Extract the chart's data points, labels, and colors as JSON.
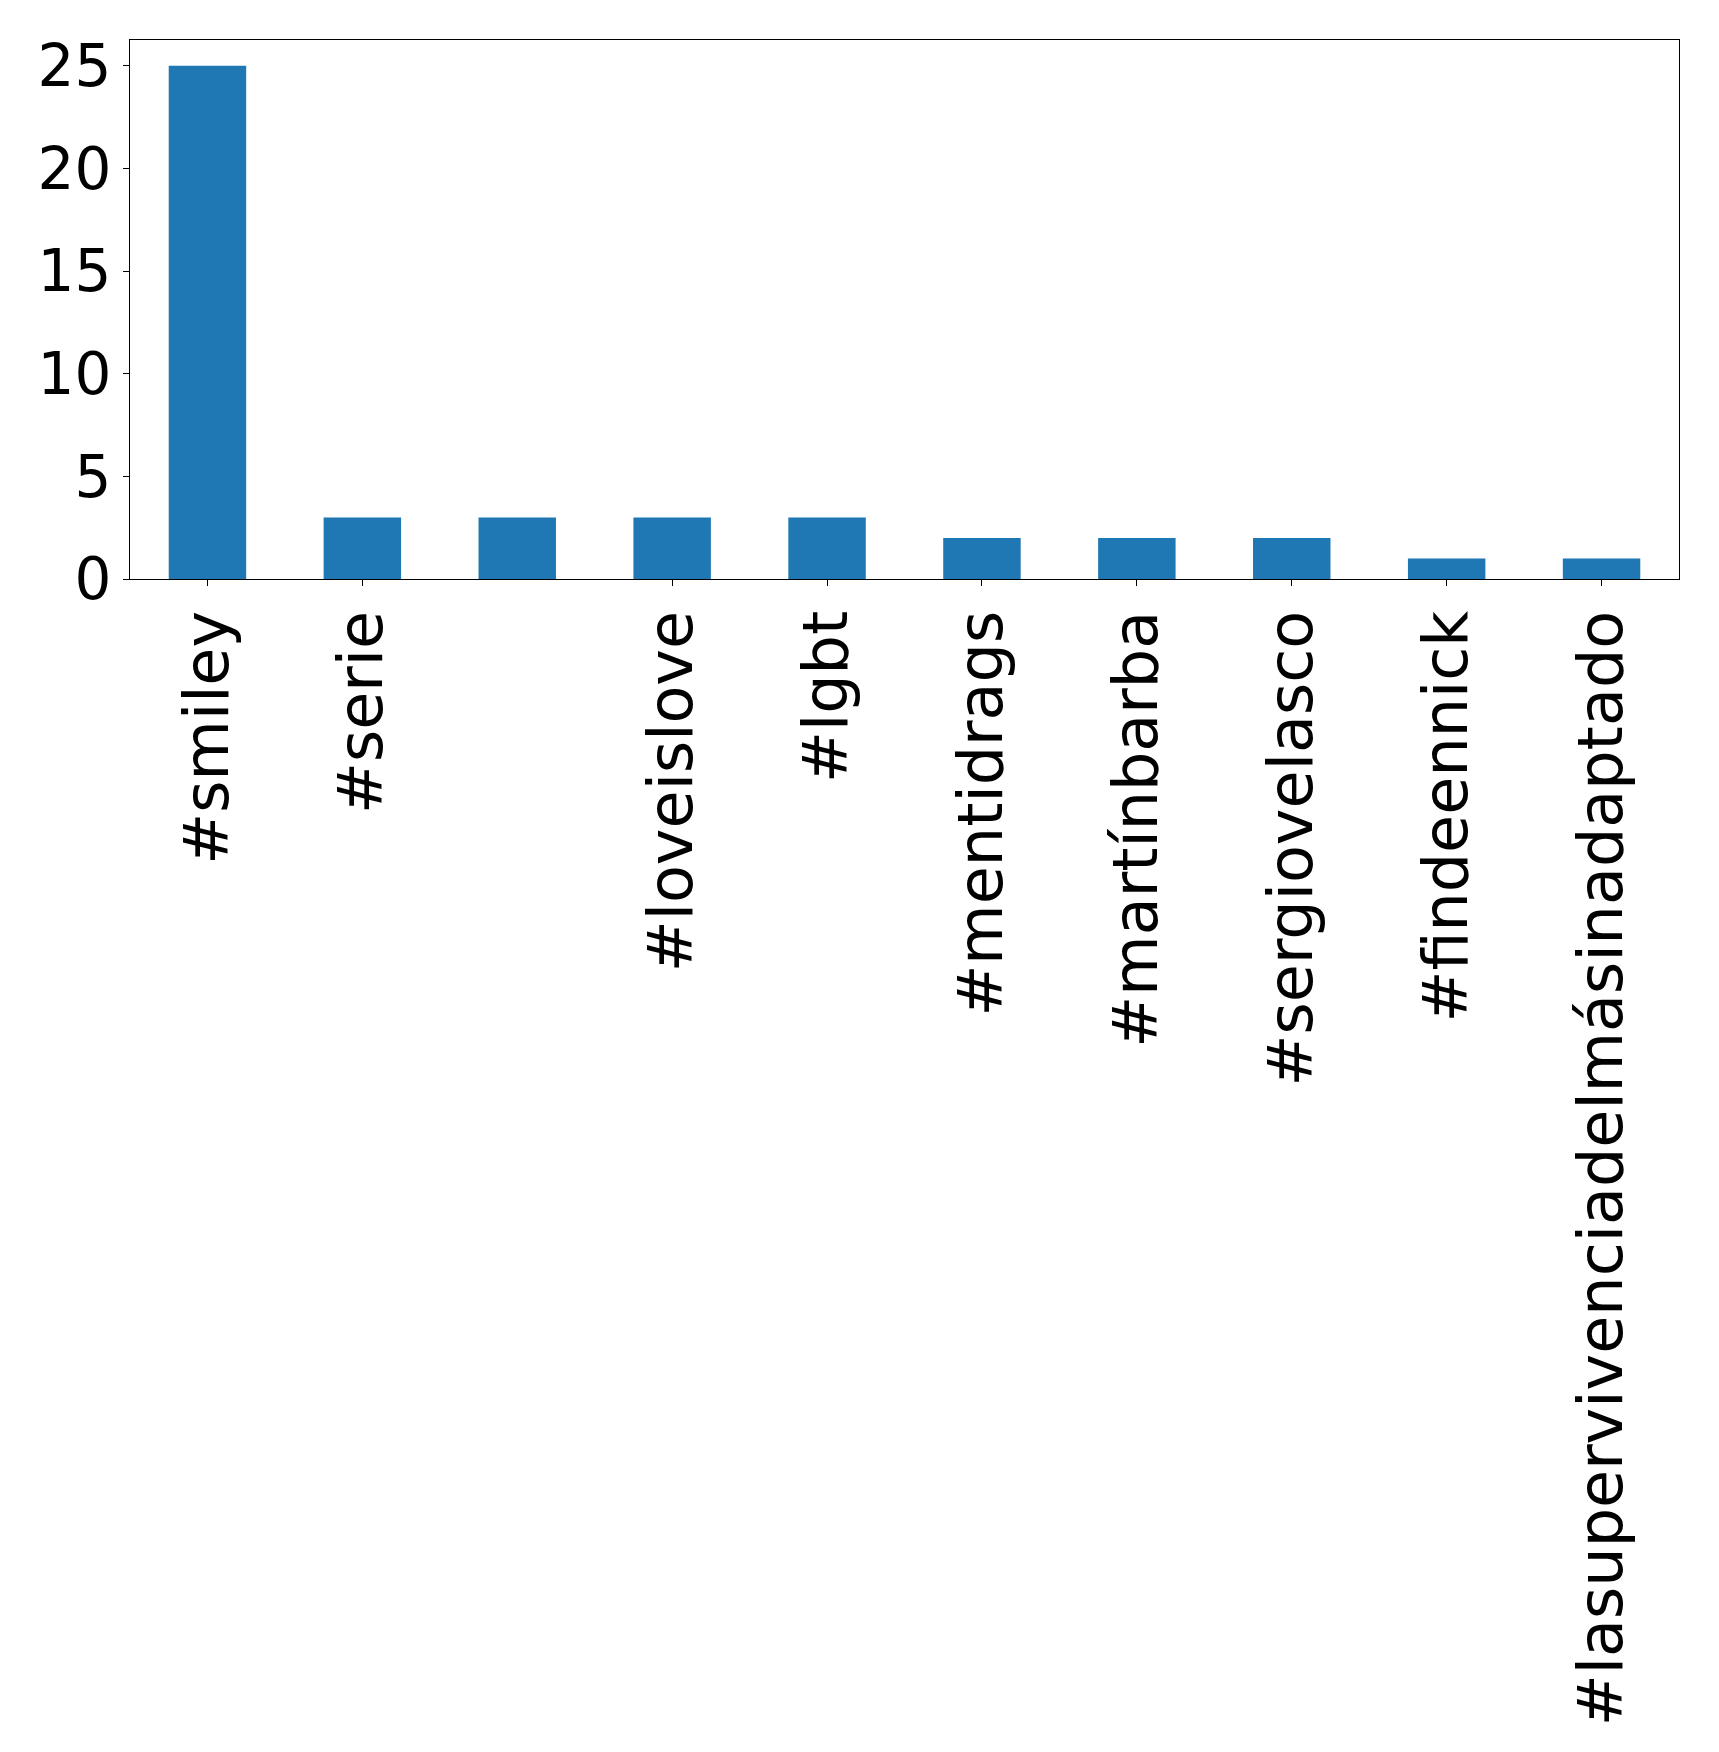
{
  "chart_data": {
    "type": "bar",
    "categories": [
      "#smiley",
      "#serie",
      null,
      "#loveislove",
      "#lgbt",
      "#mentidrags",
      "#martínbarba",
      "#sergiovelasco",
      "#findeennick",
      "#lasupervivenciadelmásinadaptado"
    ],
    "values": [
      25,
      3,
      3,
      3,
      3,
      2,
      2,
      2,
      1,
      1
    ],
    "color": "#1f77b4",
    "ylim": [
      0,
      26.25
    ],
    "yticks": [
      0,
      5,
      10,
      15,
      20,
      25
    ]
  }
}
